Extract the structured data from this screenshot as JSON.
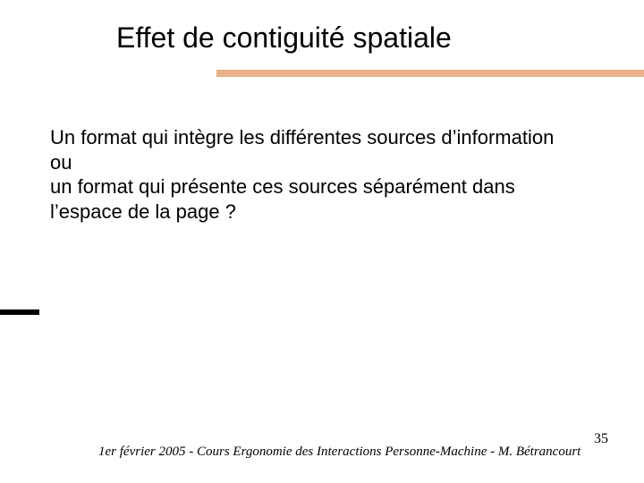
{
  "title": "Effet de contiguité spatiale",
  "body": {
    "line1": "Un format qui intègre les différentes sources d’information",
    "line2": "ou",
    "line3": "un format qui présente ces sources séparément dans",
    "line4": "l’espace de la page ?"
  },
  "footer": "1er février 2005 - Cours Ergonomie des Interactions Personne-Machine - M. Bétrancourt",
  "page_number": "35",
  "colors": {
    "underline_bar": "#e8b187",
    "side_tick": "#000000",
    "background": "#ffffff",
    "text": "#000000"
  }
}
